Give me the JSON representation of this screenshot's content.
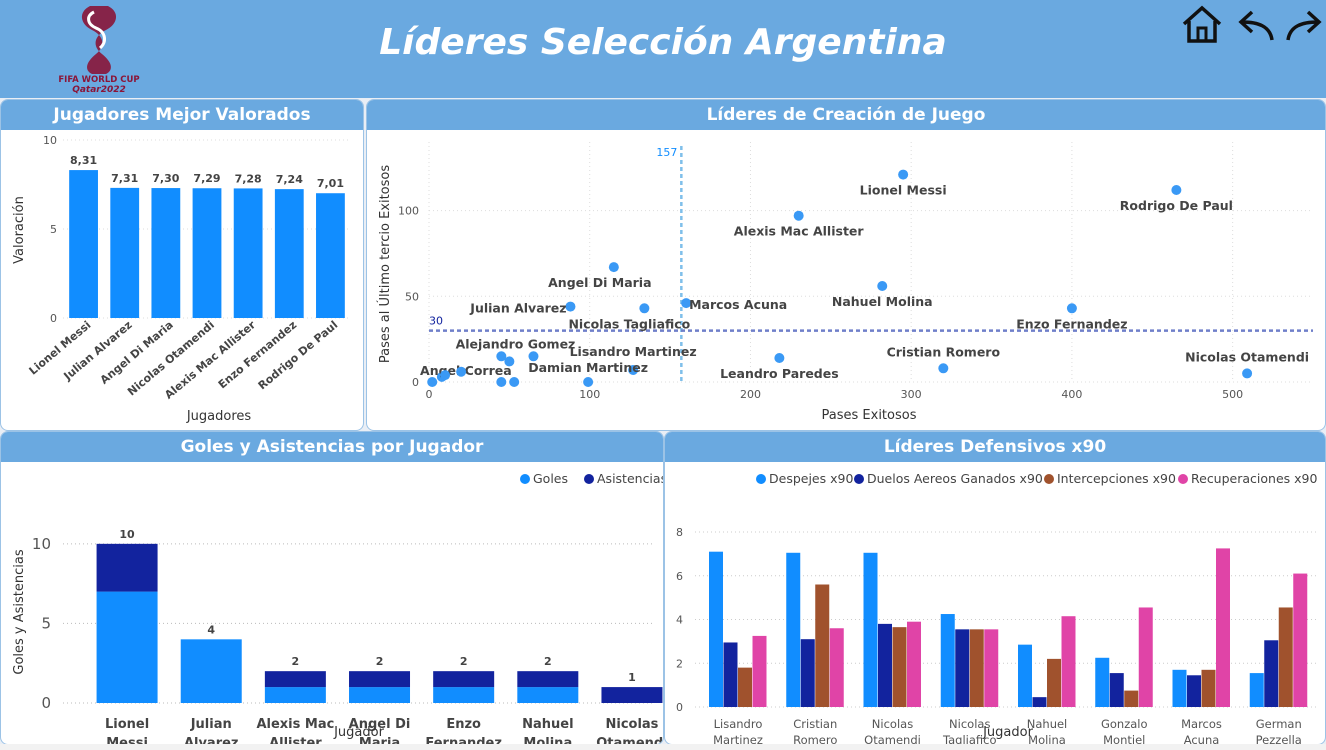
{
  "header": {
    "title": "Líderes Selección Argentina",
    "logo_line1": "FIFA WORLD CUP",
    "logo_line2": "Qatar2022"
  },
  "nav": {
    "home_icon": "home-icon",
    "back_icon": "undo-icon",
    "forward_icon": "redo-icon"
  },
  "colors": {
    "header": "#6aa9e0",
    "bar": "#118dff",
    "dark": "#12239e",
    "orange": "#a0522d",
    "pink": "#e044a7",
    "ref": "#7fbfea",
    "ref2": "#6f7fc9"
  },
  "rating": {
    "title": "Jugadores Mejor Valorados"
  },
  "creation": {
    "title": "Líderes de Creación de Juego"
  },
  "goals": {
    "title": "Goles y Asistencias por Jugador"
  },
  "defense": {
    "title": "Líderes Defensivos x90"
  },
  "chart_data": [
    {
      "type": "bar",
      "title": "Jugadores Mejor Valorados",
      "xlabel": "Jugadores",
      "ylabel": "Valoración",
      "categories": [
        "Lionel Messi",
        "Julian Alvarez",
        "Angel Di Maria",
        "Nicolas Otamendi",
        "Alexis Mac Allister",
        "Enzo Fernandez",
        "Rodrigo De Paul"
      ],
      "values": [
        8.31,
        7.31,
        7.3,
        7.29,
        7.28,
        7.24,
        7.01
      ],
      "labels": [
        "8,31",
        "7,31",
        "7,30",
        "7,29",
        "7,28",
        "7,24",
        "7,01"
      ],
      "ylim": [
        0,
        10
      ],
      "yticks": [
        "0",
        "5",
        "10"
      ]
    },
    {
      "type": "scatter",
      "title": "Líderes de Creación de Juego",
      "xlabel": "Pases Exitosos",
      "ylabel": "Pases al Último tercio Exitosos",
      "xlim": [
        0,
        550
      ],
      "ylim": [
        0,
        140
      ],
      "xticks": [
        "0",
        "100",
        "200",
        "300",
        "400",
        "500"
      ],
      "yticks": [
        "0",
        "50",
        "100"
      ],
      "ref_x": 157,
      "ref_x_label": "157",
      "ref_y": 30,
      "ref_y_label": "30",
      "points": [
        {
          "name": "Lionel Messi",
          "x": 295,
          "y": 121
        },
        {
          "name": "Rodrigo De Paul",
          "x": 465,
          "y": 112
        },
        {
          "name": "Alexis Mac Allister",
          "x": 230,
          "y": 97
        },
        {
          "name": "Angel Di Maria",
          "x": 115,
          "y": 67
        },
        {
          "name": "Nahuel Molina",
          "x": 282,
          "y": 56
        },
        {
          "name": "Marcos Acuna",
          "x": 160,
          "y": 46
        },
        {
          "name": "Julian Alvarez",
          "x": 88,
          "y": 44
        },
        {
          "name": "Nicolas Tagliafico",
          "x": 134,
          "y": 43
        },
        {
          "name": "Enzo Fernandez",
          "x": 400,
          "y": 43
        },
        {
          "name": "Alejandro Gomez",
          "x": 65,
          "y": 15
        },
        {
          "name": "Lisandro Martinez",
          "x": 127,
          "y": 7
        },
        {
          "name": "Leandro Paredes",
          "x": 218,
          "y": 14
        },
        {
          "name": "Cristian Romero",
          "x": 320,
          "y": 8
        },
        {
          "name": "Nicolas Otamendi",
          "x": 509,
          "y": 5
        },
        {
          "name": "Angel Correa",
          "x": 8,
          "y": 3
        },
        {
          "name": "Damian Martinez",
          "x": 99,
          "y": 0
        },
        {
          "name": "",
          "x": 2,
          "y": 0
        },
        {
          "name": "",
          "x": 10,
          "y": 4
        },
        {
          "name": "",
          "x": 20,
          "y": 6
        },
        {
          "name": "",
          "x": 45,
          "y": 15
        },
        {
          "name": "",
          "x": 50,
          "y": 12
        },
        {
          "name": "",
          "x": 45,
          "y": 0
        },
        {
          "name": "",
          "x": 53,
          "y": 0
        }
      ]
    },
    {
      "type": "bar",
      "title": "Goles y Asistencias por Jugador",
      "xlabel": "Jugador",
      "ylabel": "Goles y Asistencias",
      "categories": [
        "Lionel Messi",
        "Julian Alvarez",
        "Alexis Mac Allister",
        "Angel Di Maria",
        "Enzo Fernandez",
        "Nahuel Molina",
        "Nicolas Otamendi"
      ],
      "categories_lines": [
        [
          "Lionel",
          "Messi"
        ],
        [
          "Julian",
          "Alvarez"
        ],
        [
          "Alexis Mac",
          "Allister"
        ],
        [
          "Angel Di",
          "Maria"
        ],
        [
          "Enzo",
          "Fernandez"
        ],
        [
          "Nahuel",
          "Molina"
        ],
        [
          "Nicolas",
          "Otamendi"
        ]
      ],
      "series": [
        {
          "name": "Goles",
          "values": [
            7,
            4,
            1,
            1,
            1,
            1,
            0
          ]
        },
        {
          "name": "Asistencias",
          "values": [
            3,
            0,
            1,
            1,
            1,
            1,
            1
          ]
        }
      ],
      "totals": [
        "10",
        "4",
        "2",
        "2",
        "2",
        "2",
        "1"
      ],
      "stacked": true,
      "ylim": [
        0,
        12
      ],
      "yticks": [
        "0",
        "5",
        "10"
      ],
      "legend": "top-right"
    },
    {
      "type": "bar",
      "title": "Líderes Defensivos x90",
      "xlabel": "Jugador",
      "categories_lines": [
        [
          "Lisandro",
          "Martinez"
        ],
        [
          "Cristian",
          "Romero"
        ],
        [
          "Nicolas",
          "Otamendi"
        ],
        [
          "Nicolas",
          "Tagliafico"
        ],
        [
          "Nahuel",
          "Molina"
        ],
        [
          "Gonzalo",
          "Montiel"
        ],
        [
          "Marcos",
          "Acuna"
        ],
        [
          "German",
          "Pezzella"
        ]
      ],
      "series": [
        {
          "name": "Despejes x90",
          "values": [
            7.1,
            7.05,
            7.05,
            4.25,
            2.85,
            2.25,
            1.7,
            1.55
          ]
        },
        {
          "name": "Duelos Aereos Ganados x90",
          "values": [
            2.95,
            3.1,
            3.8,
            3.55,
            0.45,
            1.55,
            1.45,
            3.05
          ]
        },
        {
          "name": "Intercepciones x90",
          "values": [
            1.8,
            5.6,
            3.65,
            3.55,
            2.2,
            0.75,
            1.7,
            4.55
          ]
        },
        {
          "name": "Recuperaciones x90",
          "values": [
            3.25,
            3.6,
            3.9,
            3.55,
            4.15,
            4.55,
            7.25,
            6.1
          ]
        }
      ],
      "ylim": [
        0,
        8
      ],
      "yticks": [
        "0",
        "2",
        "4",
        "6",
        "8"
      ],
      "legend": "top"
    }
  ]
}
